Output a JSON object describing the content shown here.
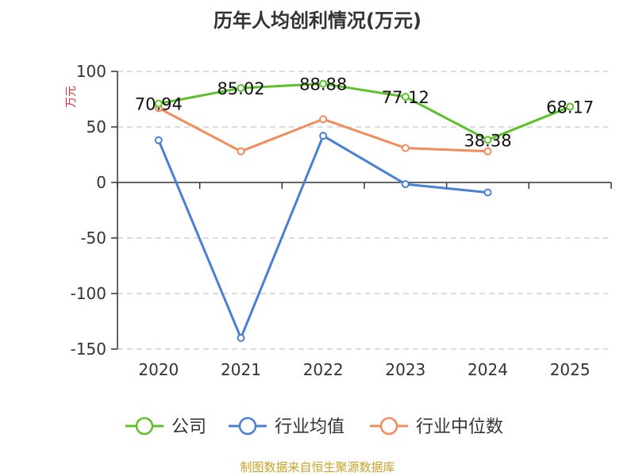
{
  "chart_data": {
    "type": "line",
    "title": "历年人均创利情况(万元)",
    "ylabel": "万元",
    "xlabel": "",
    "categories": [
      "2020",
      "2021",
      "2022",
      "2023",
      "2024",
      "2025"
    ],
    "ylim": [
      -150,
      100
    ],
    "yticks": [
      100,
      50,
      0,
      -50,
      -100,
      -150
    ],
    "grid": true,
    "legend_position": "bottom",
    "series": [
      {
        "name": "公司",
        "color": "#5cc12a",
        "values": [
          70.94,
          85.02,
          88.88,
          77.12,
          38.38,
          68.17
        ],
        "labels": [
          "70.94",
          "85.02",
          "88.88",
          "77.12",
          "38.38",
          "68.17"
        ]
      },
      {
        "name": "行业均值",
        "color": "#4a7fd6",
        "values": [
          38,
          -140,
          42,
          -1.5,
          -9,
          null
        ]
      },
      {
        "name": "行业中位数",
        "color": "#f28c5a",
        "values": [
          67,
          28,
          57,
          31,
          28,
          null
        ]
      }
    ]
  },
  "source": "制图数据来自恒生聚源数据库"
}
